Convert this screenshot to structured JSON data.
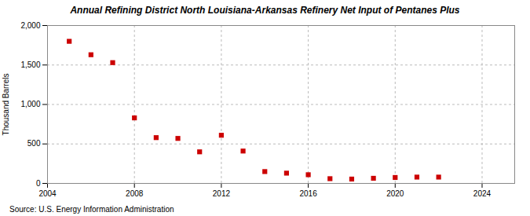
{
  "chart_data": {
    "type": "scatter",
    "title": "Annual Refining District North Louisiana-Arkansas Refinery Net Input of Pentanes Plus",
    "ylabel": "Thousand Barrels",
    "source": "Source: U.S. Energy Information Administration",
    "x": [
      2005,
      2006,
      2007,
      2008,
      2009,
      2010,
      2011,
      2012,
      2013,
      2014,
      2015,
      2016,
      2017,
      2018,
      2019,
      2020,
      2021,
      2022
    ],
    "values": [
      1800,
      1630,
      1530,
      830,
      580,
      570,
      400,
      610,
      410,
      150,
      130,
      110,
      60,
      55,
      65,
      75,
      80,
      80
    ],
    "color": "#cc0000",
    "marker": "square",
    "xlim": [
      2004.0,
      2025.5
    ],
    "xticks": [
      2004,
      2008,
      2012,
      2016,
      2020,
      2024
    ],
    "ylim": [
      0,
      2000
    ],
    "yticks": [
      0,
      500,
      {
        "value": 1000,
        "label": "1,000"
      },
      {
        "value": 1500,
        "label": "1,500"
      },
      {
        "value": 2000,
        "label": "2,000"
      }
    ],
    "grid": true
  }
}
